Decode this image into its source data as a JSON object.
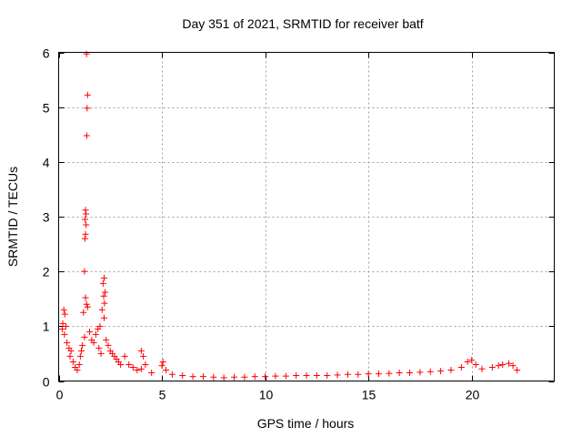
{
  "chart_data": {
    "type": "scatter",
    "title": "Day 351 of 2021, SRMTID for receiver batf",
    "xlabel": "GPS time / hours",
    "ylabel": "SRMTID / TECUs",
    "xlim": [
      0,
      24
    ],
    "ylim": [
      0,
      6
    ],
    "xticks": [
      0,
      5,
      10,
      15,
      20
    ],
    "yticks": [
      0,
      1,
      2,
      3,
      4,
      5,
      6
    ],
    "grid": true,
    "marker": "+",
    "color": "#ff0000",
    "series": [
      {
        "name": "SRMTID",
        "points": [
          [
            1.35,
            5.97
          ],
          [
            1.4,
            5.22
          ],
          [
            1.38,
            4.98
          ],
          [
            1.36,
            4.48
          ],
          [
            1.3,
            3.12
          ],
          [
            1.32,
            3.05
          ],
          [
            1.28,
            2.95
          ],
          [
            1.33,
            2.85
          ],
          [
            1.3,
            2.68
          ],
          [
            1.27,
            2.6
          ],
          [
            1.25,
            2.0
          ],
          [
            1.3,
            1.52
          ],
          [
            1.35,
            1.4
          ],
          [
            1.4,
            1.35
          ],
          [
            1.2,
            1.25
          ],
          [
            2.2,
            1.88
          ],
          [
            2.15,
            1.78
          ],
          [
            2.25,
            1.62
          ],
          [
            2.18,
            1.55
          ],
          [
            2.22,
            1.42
          ],
          [
            2.1,
            1.3
          ],
          [
            2.2,
            1.15
          ],
          [
            0.25,
            1.3
          ],
          [
            0.3,
            1.22
          ],
          [
            0.2,
            1.05
          ],
          [
            0.35,
            1.0
          ],
          [
            0.18,
            0.95
          ],
          [
            0.28,
            0.85
          ],
          [
            0.4,
            0.7
          ],
          [
            0.5,
            0.6
          ],
          [
            0.6,
            0.55
          ],
          [
            0.55,
            0.45
          ],
          [
            0.7,
            0.35
          ],
          [
            0.8,
            0.25
          ],
          [
            0.9,
            0.2
          ],
          [
            1.0,
            0.3
          ],
          [
            1.05,
            0.45
          ],
          [
            1.1,
            0.55
          ],
          [
            1.15,
            0.65
          ],
          [
            1.25,
            0.8
          ],
          [
            1.5,
            0.9
          ],
          [
            1.6,
            0.75
          ],
          [
            1.7,
            0.7
          ],
          [
            1.8,
            0.85
          ],
          [
            1.9,
            0.95
          ],
          [
            2.0,
            1.0
          ],
          [
            1.95,
            0.6
          ],
          [
            2.05,
            0.5
          ],
          [
            2.3,
            0.75
          ],
          [
            2.4,
            0.65
          ],
          [
            2.5,
            0.55
          ],
          [
            2.6,
            0.5
          ],
          [
            2.7,
            0.45
          ],
          [
            2.8,
            0.4
          ],
          [
            2.9,
            0.35
          ],
          [
            3.0,
            0.3
          ],
          [
            3.2,
            0.45
          ],
          [
            3.4,
            0.3
          ],
          [
            3.6,
            0.25
          ],
          [
            3.8,
            0.2
          ],
          [
            4.0,
            0.22
          ],
          [
            4.2,
            0.3
          ],
          [
            4.0,
            0.55
          ],
          [
            4.1,
            0.45
          ],
          [
            4.5,
            0.15
          ],
          [
            5.0,
            0.28
          ],
          [
            5.05,
            0.35
          ],
          [
            5.2,
            0.2
          ],
          [
            5.5,
            0.12
          ],
          [
            6.0,
            0.1
          ],
          [
            6.5,
            0.08
          ],
          [
            7.0,
            0.08
          ],
          [
            7.5,
            0.07
          ],
          [
            8.0,
            0.06
          ],
          [
            8.5,
            0.07
          ],
          [
            9.0,
            0.07
          ],
          [
            9.5,
            0.08
          ],
          [
            10.0,
            0.08
          ],
          [
            10.5,
            0.09
          ],
          [
            11.0,
            0.09
          ],
          [
            11.5,
            0.1
          ],
          [
            12.0,
            0.1
          ],
          [
            12.5,
            0.1
          ],
          [
            13.0,
            0.1
          ],
          [
            13.5,
            0.11
          ],
          [
            14.0,
            0.12
          ],
          [
            14.5,
            0.12
          ],
          [
            15.0,
            0.13
          ],
          [
            15.5,
            0.13
          ],
          [
            16.0,
            0.14
          ],
          [
            16.5,
            0.15
          ],
          [
            17.0,
            0.15
          ],
          [
            17.5,
            0.16
          ],
          [
            18.0,
            0.17
          ],
          [
            18.5,
            0.18
          ],
          [
            19.0,
            0.2
          ],
          [
            19.5,
            0.25
          ],
          [
            19.8,
            0.35
          ],
          [
            20.0,
            0.38
          ],
          [
            20.2,
            0.3
          ],
          [
            20.5,
            0.22
          ],
          [
            21.0,
            0.25
          ],
          [
            21.3,
            0.28
          ],
          [
            21.5,
            0.3
          ],
          [
            21.8,
            0.32
          ],
          [
            22.0,
            0.28
          ],
          [
            22.2,
            0.2
          ]
        ]
      }
    ]
  }
}
